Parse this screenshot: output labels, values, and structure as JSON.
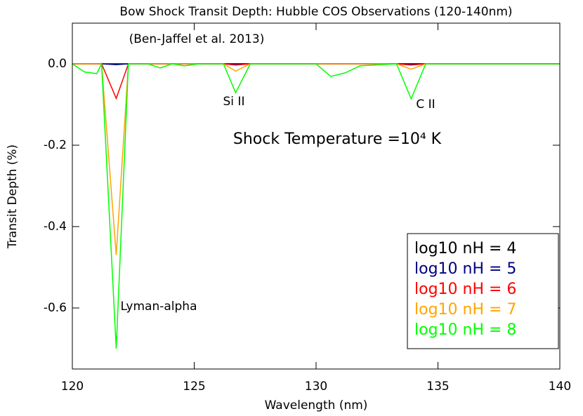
{
  "chart_data": {
    "type": "line",
    "title": "Bow Shock Transit Depth: Hubble COS Observations (120-140nm)",
    "x_label": "Wavelength (nm)",
    "y_label": "Transit Depth (%)",
    "annotations": [
      "(Ben-Jaffel et al. 2013)",
      "Si II",
      "C II",
      "Lyman-alpha",
      "Shock Temperature =10⁴ K"
    ],
    "x": [
      120,
      120.5,
      121.0,
      121.2,
      121.8,
      122.3,
      123.1,
      123.6,
      124.1,
      124.6,
      125.2,
      126.2,
      126.7,
      127.3,
      130.0,
      130.6,
      131.2,
      131.8,
      133.3,
      133.9,
      134.5,
      140
    ],
    "series": [
      {
        "name": "log10 nH = 4",
        "color": "#000000",
        "values": [
          0,
          0,
          0,
          0,
          0,
          0,
          0,
          0,
          0,
          0,
          0,
          0,
          0,
          0,
          0,
          0,
          0,
          0,
          0,
          0,
          0,
          0
        ]
      },
      {
        "name": "log10 nH = 5",
        "color": "#000080",
        "values": [
          0,
          0,
          0,
          0,
          -0.002,
          0,
          0,
          0,
          0,
          0,
          0,
          0,
          0,
          0,
          0,
          0,
          0,
          0,
          0,
          0,
          0,
          0
        ]
      },
      {
        "name": "log10 nH = 6",
        "color": "#ff0000",
        "values": [
          0,
          0,
          0,
          0,
          -0.085,
          0,
          0,
          0,
          0,
          0,
          0,
          0,
          -0.003,
          0,
          0,
          0,
          0,
          0,
          0,
          -0.003,
          0,
          0
        ]
      },
      {
        "name": "log10 nH = 7",
        "color": "#ffa500",
        "values": [
          0,
          0,
          0,
          0,
          -0.47,
          0,
          0,
          0,
          0,
          0,
          0,
          0,
          -0.018,
          0,
          0,
          0,
          0,
          0,
          0,
          -0.013,
          0,
          0
        ]
      },
      {
        "name": "log10 nH = 8",
        "color": "#00ff00",
        "values": [
          0,
          -0.02,
          -0.024,
          0,
          -0.7,
          0,
          0,
          -0.01,
          0,
          -0.005,
          0,
          0,
          -0.071,
          0,
          0,
          -0.031,
          -0.022,
          -0.005,
          0,
          -0.086,
          0,
          0
        ]
      }
    ],
    "xlim": [
      120,
      140
    ],
    "xticks": [
      120,
      125,
      130,
      135,
      140
    ],
    "ylim": [
      -0.75,
      0.1
    ],
    "yticks": [
      {
        "value": 0,
        "label": "0.0"
      },
      -0.2,
      -0.4,
      -0.6
    ]
  }
}
